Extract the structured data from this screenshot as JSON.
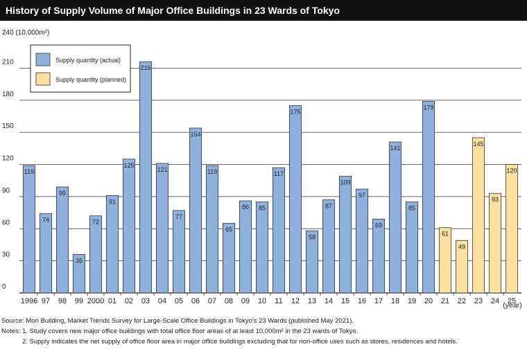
{
  "title": "History of Supply Volume of Major Office Buildings in 23 Wards of Tokyo",
  "chart_data": {
    "type": "bar",
    "y_unit_label": "240 (10,000m²)",
    "y_ticks": [
      "0",
      "30",
      "60",
      "90",
      "120",
      "150",
      "180",
      "210"
    ],
    "ylim": [
      0,
      240
    ],
    "x_unit_label": "(year)",
    "grid": true,
    "legend_position": "top-left",
    "categories": [
      "1996",
      "97",
      "98",
      "99",
      "2000",
      "01",
      "02",
      "03",
      "04",
      "05",
      "06",
      "07",
      "08",
      "09",
      "10",
      "11",
      "12",
      "13",
      "14",
      "15",
      "16",
      "17",
      "18",
      "19",
      "20",
      "21",
      "22",
      "23",
      "24",
      "25"
    ],
    "values": [
      119,
      74,
      99,
      36,
      72,
      91,
      125,
      216,
      121,
      77,
      154,
      119,
      65,
      86,
      85,
      117,
      175,
      58,
      87,
      109,
      97,
      69,
      141,
      85,
      179,
      61,
      49,
      145,
      93,
      120
    ],
    "kinds": [
      "actual",
      "actual",
      "actual",
      "actual",
      "actual",
      "actual",
      "actual",
      "actual",
      "actual",
      "actual",
      "actual",
      "actual",
      "actual",
      "actual",
      "actual",
      "actual",
      "actual",
      "actual",
      "actual",
      "actual",
      "actual",
      "actual",
      "actual",
      "actual",
      "actual",
      "planned",
      "planned",
      "planned",
      "planned",
      "planned"
    ],
    "series": [
      {
        "name": "Supply quantity (actual)",
        "key": "actual",
        "color": "#8fb1de"
      },
      {
        "name": "Supply quantity (planned)",
        "key": "planned",
        "color": "#fbe0a0"
      }
    ]
  },
  "footer": {
    "source": "Source: Mori Building, Market Trends Survey for Large-Scale Office Buildings in Tokyo's 23 Wards (published May 2021).",
    "note1": "Notes: 1. Study covers new major office buildings with total office floor areas of at least 10,000m² in the 23 wards of Tokyo.",
    "note2": "2. Supply indicates the net supply of office floor area in major office buildings excluding that for non-office uses such as stores, residences and hotels."
  }
}
